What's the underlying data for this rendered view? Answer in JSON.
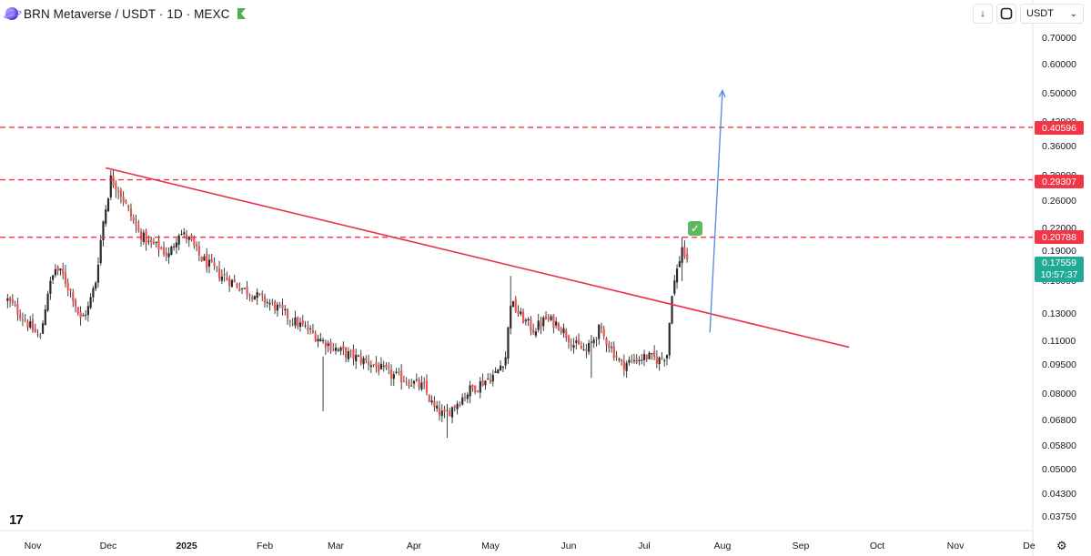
{
  "header": {
    "title": "BRN Metaverse / USDT · 1D · MEXC"
  },
  "toolbar": {
    "download_icon": "↓",
    "fullscreen_icon": "⛶",
    "currency": "USDT",
    "currency_chevron": "⌄"
  },
  "price_axis": {
    "labels": [
      "0.70000",
      "0.60000",
      "0.50000",
      "0.42000",
      "0.36000",
      "0.30000",
      "0.26000",
      "0.22000",
      "0.19000",
      "0.16000",
      "0.13000",
      "0.11000",
      "0.09500",
      "0.08000",
      "0.06800",
      "0.05800",
      "0.05000",
      "0.04300",
      "0.03750"
    ]
  },
  "levels": {
    "l1": "0.40596",
    "l2": "0.29307",
    "l3": "0.20788"
  },
  "current": {
    "price": "0.17559",
    "countdown": "10:57:37"
  },
  "time_axis": {
    "labels": [
      "Nov",
      "Dec",
      "2025",
      "Feb",
      "Mar",
      "Apr",
      "May",
      "Jun",
      "Jul",
      "Aug",
      "Sep",
      "Oct",
      "Nov",
      "De"
    ]
  },
  "brand": {
    "logo_text": "17"
  },
  "colors": {
    "up": "#26a69a",
    "down": "#ef5350",
    "candle": "#2b2b2b",
    "level_line": "#f23645",
    "trendline": "#e8314a",
    "arrow": "#5b8fe0",
    "accent_green": "#22ab94"
  },
  "chart_data": {
    "type": "candlestick",
    "scale": "log",
    "ylim": [
      0.0375,
      0.7
    ],
    "x": {
      "start": "2024-10-22",
      "end": "2025-12-31",
      "ticks": [
        "Nov",
        "Dec",
        "2025",
        "Feb",
        "Mar",
        "Apr",
        "May",
        "Jun",
        "Jul",
        "Aug",
        "Sep",
        "Oct",
        "Nov",
        "De"
      ]
    },
    "horizontal_levels": [
      0.40596,
      0.29307,
      0.20788
    ],
    "trendline": {
      "from": [
        "2024-11-30",
        0.315
      ],
      "to": [
        "2025-09-20",
        0.106
      ]
    },
    "projection_arrow": {
      "from": [
        "2025-07-27",
        0.116
      ],
      "to": [
        "2025-08-01",
        0.51
      ]
    },
    "close_path": [
      [
        "2024-10-22",
        0.142
      ],
      [
        "2024-10-27",
        0.13
      ],
      [
        "2024-11-01",
        0.118
      ],
      [
        "2024-11-04",
        0.112
      ],
      [
        "2024-11-07",
        0.15
      ],
      [
        "2024-11-10",
        0.172
      ],
      [
        "2024-11-13",
        0.165
      ],
      [
        "2024-11-17",
        0.145
      ],
      [
        "2024-11-20",
        0.125
      ],
      [
        "2024-11-23",
        0.135
      ],
      [
        "2024-11-26",
        0.16
      ],
      [
        "2024-11-29",
        0.23
      ],
      [
        "2024-12-02",
        0.295
      ],
      [
        "2024-12-05",
        0.28
      ],
      [
        "2024-12-09",
        0.245
      ],
      [
        "2024-12-13",
        0.215
      ],
      [
        "2024-12-17",
        0.2
      ],
      [
        "2024-12-21",
        0.195
      ],
      [
        "2024-12-25",
        0.185
      ],
      [
        "2024-12-29",
        0.215
      ],
      [
        "2025-01-02",
        0.205
      ],
      [
        "2025-01-06",
        0.185
      ],
      [
        "2025-01-10",
        0.175
      ],
      [
        "2025-01-15",
        0.165
      ],
      [
        "2025-01-20",
        0.158
      ],
      [
        "2025-01-25",
        0.15
      ],
      [
        "2025-01-31",
        0.143
      ],
      [
        "2025-02-06",
        0.135
      ],
      [
        "2025-02-12",
        0.125
      ],
      [
        "2025-02-18",
        0.118
      ],
      [
        "2025-02-24",
        0.11
      ],
      [
        "2025-03-02",
        0.104
      ],
      [
        "2025-03-08",
        0.1
      ],
      [
        "2025-03-15",
        0.096
      ],
      [
        "2025-03-22",
        0.09
      ],
      [
        "2025-03-29",
        0.087
      ],
      [
        "2025-04-05",
        0.083
      ],
      [
        "2025-04-09",
        0.073
      ],
      [
        "2025-04-13",
        0.07
      ],
      [
        "2025-04-18",
        0.076
      ],
      [
        "2025-04-23",
        0.082
      ],
      [
        "2025-04-28",
        0.086
      ],
      [
        "2025-05-03",
        0.09
      ],
      [
        "2025-05-07",
        0.1
      ],
      [
        "2025-05-09",
        0.14
      ],
      [
        "2025-05-13",
        0.128
      ],
      [
        "2025-05-18",
        0.118
      ],
      [
        "2025-05-23",
        0.126
      ],
      [
        "2025-05-28",
        0.122
      ],
      [
        "2025-06-03",
        0.108
      ],
      [
        "2025-06-08",
        0.103
      ],
      [
        "2025-06-13",
        0.118
      ],
      [
        "2025-06-17",
        0.108
      ],
      [
        "2025-06-22",
        0.095
      ],
      [
        "2025-06-27",
        0.098
      ],
      [
        "2025-07-02",
        0.1
      ],
      [
        "2025-07-07",
        0.098
      ],
      [
        "2025-07-10",
        0.102
      ],
      [
        "2025-07-12",
        0.15
      ],
      [
        "2025-07-14",
        0.17
      ],
      [
        "2025-07-16",
        0.195
      ],
      [
        "2025-07-17",
        0.186
      ],
      [
        "2025-07-18",
        0.17559
      ]
    ]
  }
}
